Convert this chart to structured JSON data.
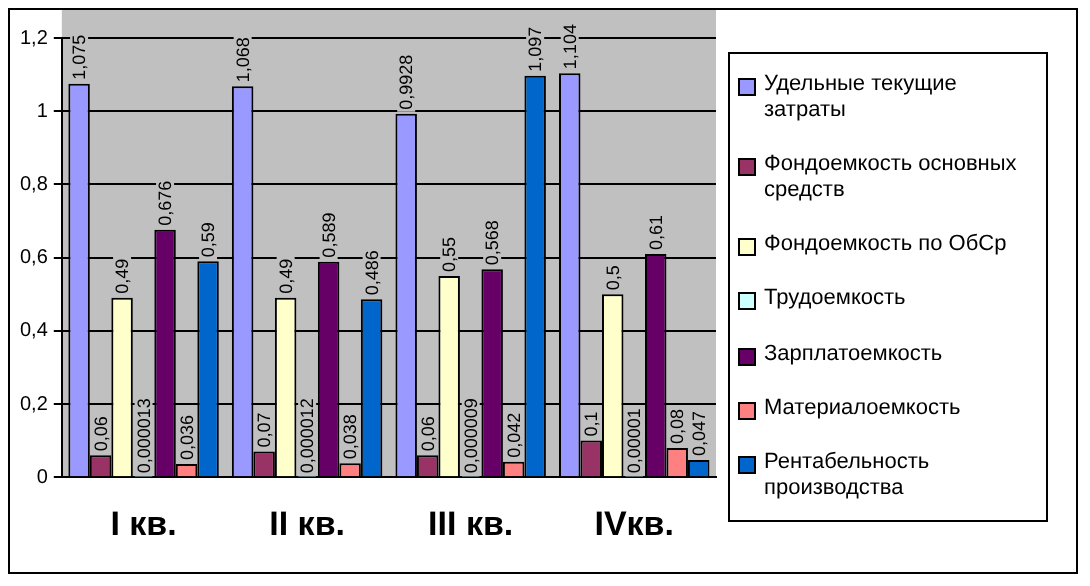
{
  "chart_data": {
    "type": "bar",
    "categories": [
      "I кв.",
      "II кв.",
      "III кв.",
      "IVкв."
    ],
    "ylim": [
      0,
      1.2
    ],
    "yticks": [
      0,
      {
        "value": 0.2,
        "label": "0,2"
      },
      {
        "value": 0.4,
        "label": "0,4"
      },
      {
        "value": 0.6,
        "label": "0,6"
      },
      {
        "value": 0.8,
        "label": "0,8"
      },
      1,
      {
        "value": 1.2,
        "label": "1,2"
      }
    ],
    "grid": "y",
    "legend": "right",
    "series": [
      {
        "name": "Удельные текущие затраты",
        "color": "#9999ff",
        "values": [
          1.075,
          1.068,
          0.9928,
          1.104
        ],
        "value_labels": [
          "1,075",
          "1,068",
          "0,9928",
          "1,104"
        ]
      },
      {
        "name": "Фондоемкость основных средств",
        "color": "#993366",
        "values": [
          0.06,
          0.07,
          0.06,
          0.1
        ],
        "value_labels": [
          "0,06",
          "0,07",
          "0,06",
          "0,1"
        ]
      },
      {
        "name": "Фондоемкость по ОбСр",
        "color": "#ffffcc",
        "values": [
          0.49,
          0.49,
          0.55,
          0.5
        ],
        "value_labels": [
          "0,49",
          "0,49",
          "0,55",
          "0,5"
        ]
      },
      {
        "name": "Трудоемкость",
        "color": "#ccffff",
        "values": [
          1.3e-05,
          1.2e-05,
          9e-06,
          1e-05
        ],
        "value_labels": [
          "0,000013",
          "0,000012",
          "0,000009",
          "0,00001"
        ]
      },
      {
        "name": "Зарплатоемкость",
        "color": "#660066",
        "values": [
          0.676,
          0.589,
          0.568,
          0.61
        ],
        "value_labels": [
          "0,676",
          "0,589",
          "0,568",
          "0,61"
        ]
      },
      {
        "name": "Материалоемкость",
        "color": "#ff8080",
        "values": [
          0.036,
          0.038,
          0.042,
          0.08
        ],
        "value_labels": [
          "0,036",
          "0,038",
          "0,042",
          "0,08"
        ]
      },
      {
        "name": "Рентабельность производства",
        "color": "#0066cc",
        "values": [
          0.59,
          0.486,
          1.097,
          0.047
        ],
        "value_labels": [
          "0,59",
          "0,486",
          "1,097",
          "0,047"
        ]
      }
    ]
  }
}
